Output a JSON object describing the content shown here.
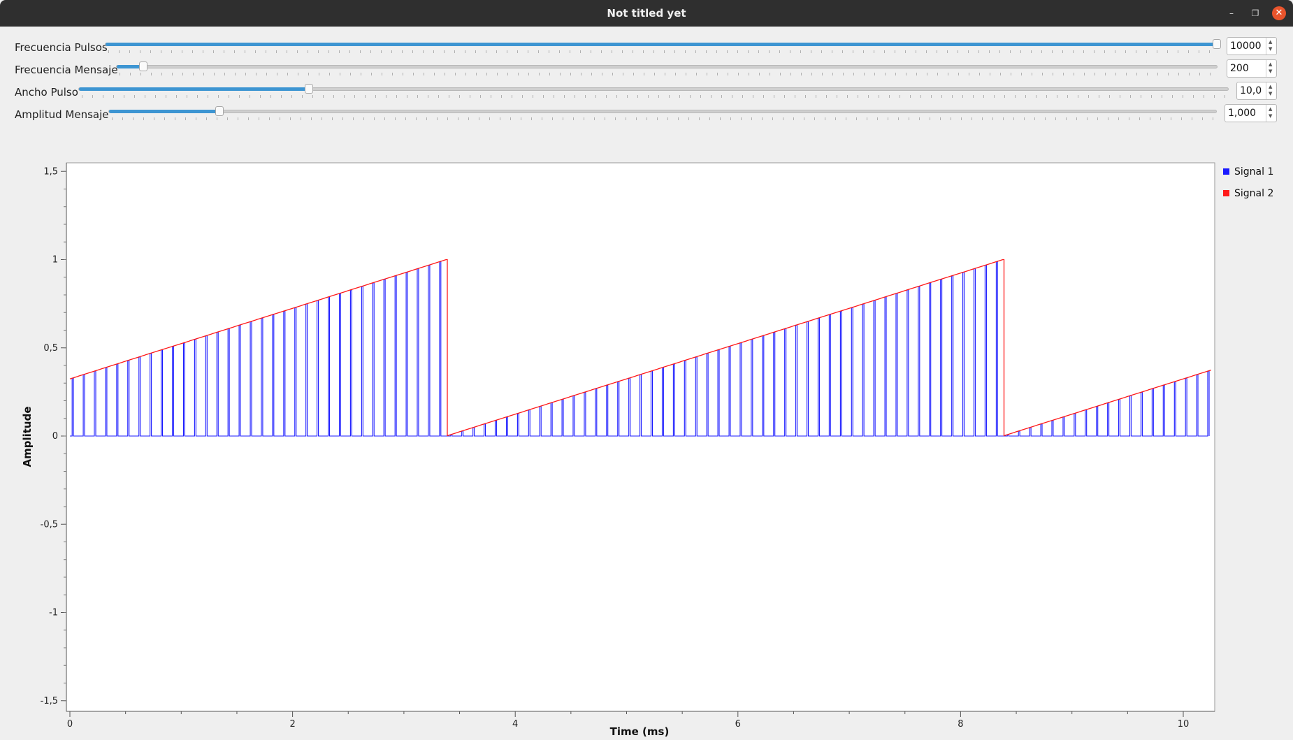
{
  "window": {
    "title": "Not titled yet"
  },
  "controls": [
    {
      "label": "Frecuencia Pulsos",
      "value": "10000",
      "fraction": 1.0
    },
    {
      "label": "Frecuencia Mensaje",
      "value": "200",
      "fraction": 0.024
    },
    {
      "label": "Ancho Pulso",
      "value": "10,0",
      "fraction": 0.2
    },
    {
      "label": "Amplitud Mensaje",
      "value": "1,000",
      "fraction": 0.1
    }
  ],
  "legend": [
    {
      "name": "Signal 1",
      "color": "#1a1aff"
    },
    {
      "name": "Signal 2",
      "color": "#ff1a1a"
    }
  ],
  "chart_data": {
    "type": "line",
    "xlabel": "Time (ms)",
    "ylabel": "Amplitude",
    "xlim": [
      0,
      10.25
    ],
    "ylim": [
      -1.55,
      1.55
    ],
    "xticks": [
      0,
      2,
      4,
      6,
      8,
      10
    ],
    "xtick_labels": [
      "0",
      "2",
      "4",
      "6",
      "8",
      "10"
    ],
    "yticks": [
      1.5,
      1,
      0.5,
      0,
      -0.5,
      -1,
      -1.5
    ],
    "ytick_labels": [
      "1,5",
      "1",
      "0,5",
      "0",
      "-0,5",
      "-1",
      "-1,5"
    ],
    "grid": false,
    "legend_position": "right",
    "series": [
      {
        "name": "Signal 1",
        "color": "#1a1aff",
        "description": "pulse-amplitude modulated train: pulses every 0.1 ms, width ~0.01 ms, amplitude follows the sawtooth"
      },
      {
        "name": "Signal 2",
        "color": "#ff1a1a",
        "sawtooth": {
          "period_ms": 5.0,
          "start_value": 0.33,
          "min": 0.0,
          "max": 1.0,
          "reset_at_ms": [
            3.38,
            8.38
          ],
          "end_value": 0.37
        }
      }
    ]
  }
}
